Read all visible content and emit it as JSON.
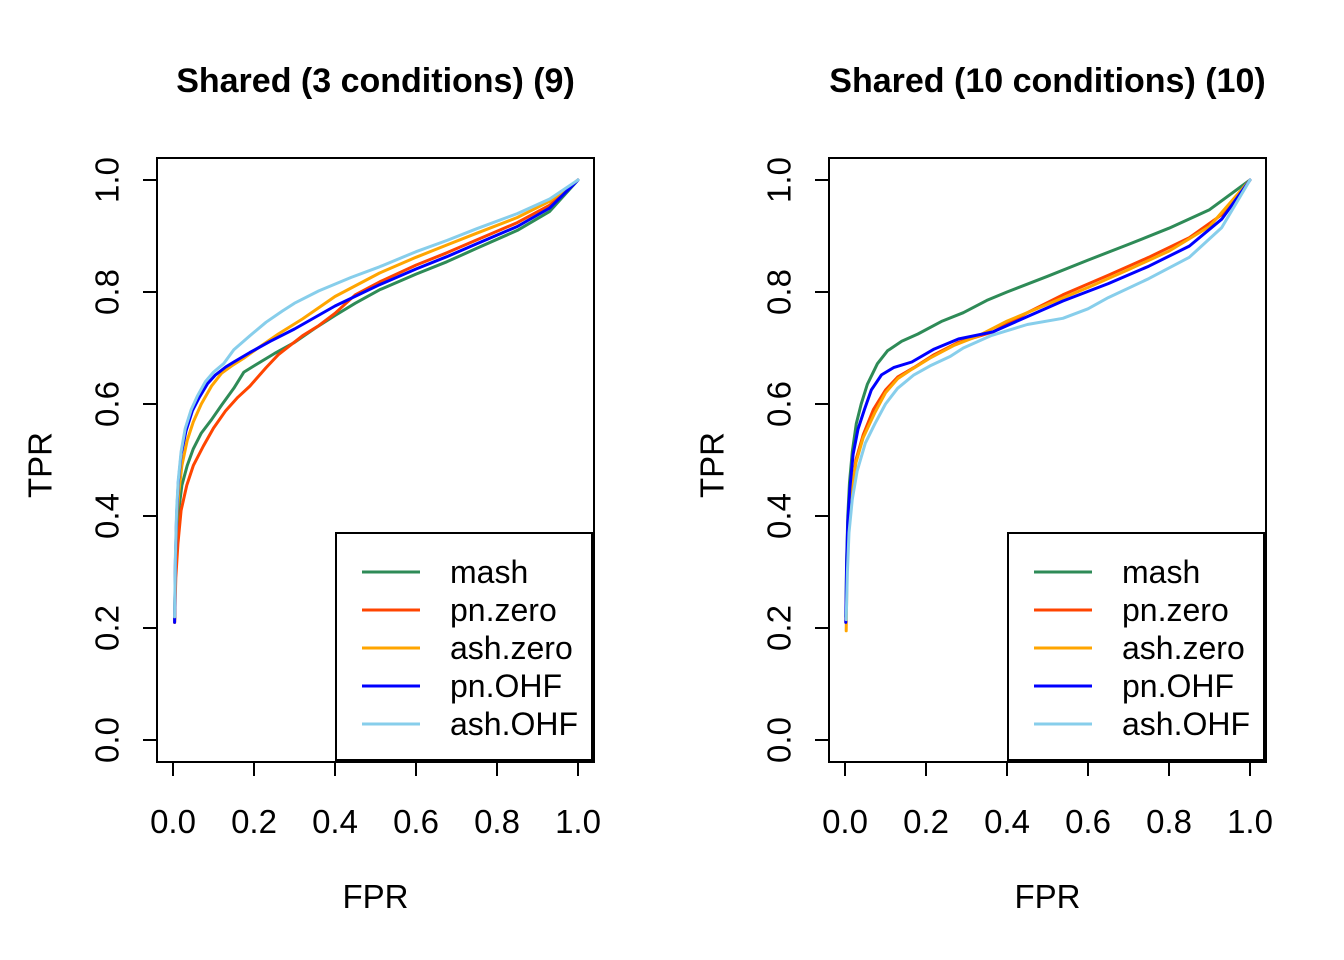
{
  "page": {
    "background": "#ffffff",
    "text_color": "#000000"
  },
  "chart_data": [
    {
      "type": "line",
      "title": "Shared (3 conditions) (9)",
      "xlabel": "FPR",
      "ylabel": "TPR",
      "xlim": [
        0,
        1
      ],
      "ylim": [
        0,
        1
      ],
      "xticks": [
        "0.0",
        "0.2",
        "0.4",
        "0.6",
        "0.8",
        "1.0"
      ],
      "yticks": [
        "0.0",
        "0.2",
        "0.4",
        "0.6",
        "0.8",
        "1.0"
      ],
      "grid": false,
      "legend": {
        "position": "bottom-right",
        "border": true,
        "entries": [
          "mash",
          "pn.zero",
          "ash.zero",
          "pn.OHF",
          "ash.OHF"
        ]
      },
      "series": [
        {
          "name": "mash",
          "color": "#2E8B57",
          "points": [
            [
              0.004,
              0.215
            ],
            [
              0.006,
              0.3
            ],
            [
              0.009,
              0.36
            ],
            [
              0.014,
              0.41
            ],
            [
              0.022,
              0.455
            ],
            [
              0.035,
              0.49
            ],
            [
              0.05,
              0.52
            ],
            [
              0.07,
              0.548
            ],
            [
              0.095,
              0.572
            ],
            [
              0.12,
              0.598
            ],
            [
              0.15,
              0.628
            ],
            [
              0.175,
              0.657
            ],
            [
              0.2,
              0.668
            ],
            [
              0.25,
              0.69
            ],
            [
              0.3,
              0.71
            ],
            [
              0.35,
              0.735
            ],
            [
              0.4,
              0.758
            ],
            [
              0.45,
              0.78
            ],
            [
              0.51,
              0.804
            ],
            [
              0.6,
              0.832
            ],
            [
              0.676,
              0.854
            ],
            [
              0.75,
              0.878
            ],
            [
              0.85,
              0.91
            ],
            [
              0.93,
              0.944
            ],
            [
              1,
              1
            ]
          ]
        },
        {
          "name": "pn.zero",
          "color": "#FF4500",
          "points": [
            [
              0.004,
              0.21
            ],
            [
              0.007,
              0.29
            ],
            [
              0.012,
              0.35
            ],
            [
              0.02,
              0.41
            ],
            [
              0.034,
              0.455
            ],
            [
              0.05,
              0.49
            ],
            [
              0.075,
              0.525
            ],
            [
              0.1,
              0.557
            ],
            [
              0.13,
              0.588
            ],
            [
              0.16,
              0.612
            ],
            [
              0.19,
              0.632
            ],
            [
              0.23,
              0.665
            ],
            [
              0.26,
              0.688
            ],
            [
              0.32,
              0.722
            ],
            [
              0.36,
              0.74
            ],
            [
              0.4,
              0.762
            ],
            [
              0.45,
              0.795
            ],
            [
              0.51,
              0.818
            ],
            [
              0.6,
              0.848
            ],
            [
              0.676,
              0.87
            ],
            [
              0.75,
              0.893
            ],
            [
              0.85,
              0.924
            ],
            [
              0.93,
              0.955
            ],
            [
              1,
              1
            ]
          ]
        },
        {
          "name": "ash.zero",
          "color": "#FFA500",
          "points": [
            [
              0.004,
              0.21
            ],
            [
              0.006,
              0.31
            ],
            [
              0.009,
              0.39
            ],
            [
              0.014,
              0.44
            ],
            [
              0.022,
              0.49
            ],
            [
              0.035,
              0.535
            ],
            [
              0.05,
              0.568
            ],
            [
              0.07,
              0.6
            ],
            [
              0.095,
              0.632
            ],
            [
              0.12,
              0.655
            ],
            [
              0.145,
              0.668
            ],
            [
              0.175,
              0.682
            ],
            [
              0.21,
              0.7
            ],
            [
              0.26,
              0.725
            ],
            [
              0.32,
              0.752
            ],
            [
              0.4,
              0.792
            ],
            [
              0.51,
              0.834
            ],
            [
              0.6,
              0.862
            ],
            [
              0.676,
              0.884
            ],
            [
              0.75,
              0.905
            ],
            [
              0.85,
              0.933
            ],
            [
              0.93,
              0.962
            ],
            [
              1,
              1
            ]
          ]
        },
        {
          "name": "pn.OHF",
          "color": "#0000FF",
          "points": [
            [
              0.004,
              0.21
            ],
            [
              0.006,
              0.32
            ],
            [
              0.009,
              0.4
            ],
            [
              0.013,
              0.46
            ],
            [
              0.02,
              0.51
            ],
            [
              0.032,
              0.552
            ],
            [
              0.048,
              0.588
            ],
            [
              0.065,
              0.612
            ],
            [
              0.085,
              0.636
            ],
            [
              0.105,
              0.652
            ],
            [
              0.13,
              0.666
            ],
            [
              0.15,
              0.675
            ],
            [
              0.19,
              0.692
            ],
            [
              0.24,
              0.712
            ],
            [
              0.3,
              0.734
            ],
            [
              0.4,
              0.775
            ],
            [
              0.51,
              0.813
            ],
            [
              0.6,
              0.841
            ],
            [
              0.676,
              0.863
            ],
            [
              0.75,
              0.886
            ],
            [
              0.85,
              0.917
            ],
            [
              0.93,
              0.95
            ],
            [
              1,
              1
            ]
          ]
        },
        {
          "name": "ash.OHF",
          "color": "#87CEEB",
          "points": [
            [
              0.004,
              0.22
            ],
            [
              0.006,
              0.33
            ],
            [
              0.009,
              0.41
            ],
            [
              0.013,
              0.465
            ],
            [
              0.02,
              0.515
            ],
            [
              0.03,
              0.556
            ],
            [
              0.045,
              0.59
            ],
            [
              0.06,
              0.614
            ],
            [
              0.08,
              0.64
            ],
            [
              0.1,
              0.657
            ],
            [
              0.125,
              0.672
            ],
            [
              0.15,
              0.697
            ],
            [
              0.19,
              0.722
            ],
            [
              0.23,
              0.746
            ],
            [
              0.27,
              0.766
            ],
            [
              0.3,
              0.78
            ],
            [
              0.36,
              0.802
            ],
            [
              0.44,
              0.826
            ],
            [
              0.51,
              0.845
            ],
            [
              0.6,
              0.872
            ],
            [
              0.676,
              0.892
            ],
            [
              0.75,
              0.913
            ],
            [
              0.85,
              0.94
            ],
            [
              0.93,
              0.966
            ],
            [
              1,
              1
            ]
          ]
        }
      ]
    },
    {
      "type": "line",
      "title": "Shared (10 conditions) (10)",
      "xlabel": "FPR",
      "ylabel": "TPR",
      "xlim": [
        0,
        1
      ],
      "ylim": [
        0,
        1
      ],
      "xticks": [
        "0.0",
        "0.2",
        "0.4",
        "0.6",
        "0.8",
        "1.0"
      ],
      "yticks": [
        "0.0",
        "0.2",
        "0.4",
        "0.6",
        "0.8",
        "1.0"
      ],
      "grid": false,
      "legend": {
        "position": "bottom-right",
        "border": true,
        "entries": [
          "mash",
          "pn.zero",
          "ash.zero",
          "pn.OHF",
          "ash.OHF"
        ]
      },
      "series": [
        {
          "name": "mash",
          "color": "#2E8B57",
          "points": [
            [
              0.002,
              0.22
            ],
            [
              0.004,
              0.32
            ],
            [
              0.007,
              0.4
            ],
            [
              0.011,
              0.46
            ],
            [
              0.018,
              0.515
            ],
            [
              0.028,
              0.565
            ],
            [
              0.04,
              0.6
            ],
            [
              0.055,
              0.635
            ],
            [
              0.08,
              0.672
            ],
            [
              0.105,
              0.695
            ],
            [
              0.14,
              0.712
            ],
            [
              0.18,
              0.725
            ],
            [
              0.24,
              0.748
            ],
            [
              0.292,
              0.763
            ],
            [
              0.35,
              0.785
            ],
            [
              0.4,
              0.8
            ],
            [
              0.5,
              0.828
            ],
            [
              0.6,
              0.857
            ],
            [
              0.7,
              0.885
            ],
            [
              0.8,
              0.914
            ],
            [
              0.9,
              0.947
            ],
            [
              1,
              1
            ]
          ]
        },
        {
          "name": "pn.zero",
          "color": "#FF4500",
          "points": [
            [
              0.002,
              0.21
            ],
            [
              0.005,
              0.3
            ],
            [
              0.009,
              0.38
            ],
            [
              0.016,
              0.44
            ],
            [
              0.027,
              0.5
            ],
            [
              0.045,
              0.545
            ],
            [
              0.07,
              0.59
            ],
            [
              0.1,
              0.625
            ],
            [
              0.13,
              0.648
            ],
            [
              0.17,
              0.665
            ],
            [
              0.22,
              0.688
            ],
            [
              0.28,
              0.71
            ],
            [
              0.366,
              0.729
            ],
            [
              0.45,
              0.763
            ],
            [
              0.538,
              0.795
            ],
            [
              0.65,
              0.83
            ],
            [
              0.75,
              0.862
            ],
            [
              0.85,
              0.897
            ],
            [
              0.93,
              0.938
            ],
            [
              1,
              1
            ]
          ]
        },
        {
          "name": "ash.zero",
          "color": "#FFA500",
          "points": [
            [
              0.003,
              0.195
            ],
            [
              0.005,
              0.3
            ],
            [
              0.009,
              0.38
            ],
            [
              0.016,
              0.44
            ],
            [
              0.027,
              0.495
            ],
            [
              0.045,
              0.54
            ],
            [
              0.074,
              0.585
            ],
            [
              0.1,
              0.62
            ],
            [
              0.13,
              0.645
            ],
            [
              0.165,
              0.662
            ],
            [
              0.21,
              0.682
            ],
            [
              0.27,
              0.705
            ],
            [
              0.33,
              0.722
            ],
            [
              0.4,
              0.748
            ],
            [
              0.5,
              0.778
            ],
            [
              0.6,
              0.808
            ],
            [
              0.7,
              0.84
            ],
            [
              0.8,
              0.873
            ],
            [
              0.9,
              0.917
            ],
            [
              1,
              1
            ]
          ]
        },
        {
          "name": "pn.OHF",
          "color": "#0000FF",
          "points": [
            [
              0.002,
              0.21
            ],
            [
              0.004,
              0.31
            ],
            [
              0.007,
              0.39
            ],
            [
              0.012,
              0.45
            ],
            [
              0.02,
              0.51
            ],
            [
              0.032,
              0.555
            ],
            [
              0.048,
              0.59
            ],
            [
              0.065,
              0.625
            ],
            [
              0.09,
              0.652
            ],
            [
              0.12,
              0.665
            ],
            [
              0.165,
              0.675
            ],
            [
              0.22,
              0.698
            ],
            [
              0.28,
              0.716
            ],
            [
              0.366,
              0.729
            ],
            [
              0.45,
              0.756
            ],
            [
              0.538,
              0.784
            ],
            [
              0.65,
              0.815
            ],
            [
              0.75,
              0.846
            ],
            [
              0.85,
              0.882
            ],
            [
              0.93,
              0.93
            ],
            [
              1,
              1
            ]
          ]
        },
        {
          "name": "ash.OHF",
          "color": "#87CEEB",
          "points": [
            [
              0.003,
              0.215
            ],
            [
              0.006,
              0.3
            ],
            [
              0.01,
              0.37
            ],
            [
              0.018,
              0.43
            ],
            [
              0.03,
              0.48
            ],
            [
              0.05,
              0.53
            ],
            [
              0.074,
              0.565
            ],
            [
              0.1,
              0.6
            ],
            [
              0.13,
              0.628
            ],
            [
              0.17,
              0.652
            ],
            [
              0.21,
              0.668
            ],
            [
              0.26,
              0.685
            ],
            [
              0.292,
              0.7
            ],
            [
              0.36,
              0.722
            ],
            [
              0.45,
              0.742
            ],
            [
              0.538,
              0.753
            ],
            [
              0.6,
              0.77
            ],
            [
              0.65,
              0.79
            ],
            [
              0.75,
              0.824
            ],
            [
              0.85,
              0.862
            ],
            [
              0.93,
              0.915
            ],
            [
              1,
              1
            ]
          ]
        }
      ]
    }
  ]
}
